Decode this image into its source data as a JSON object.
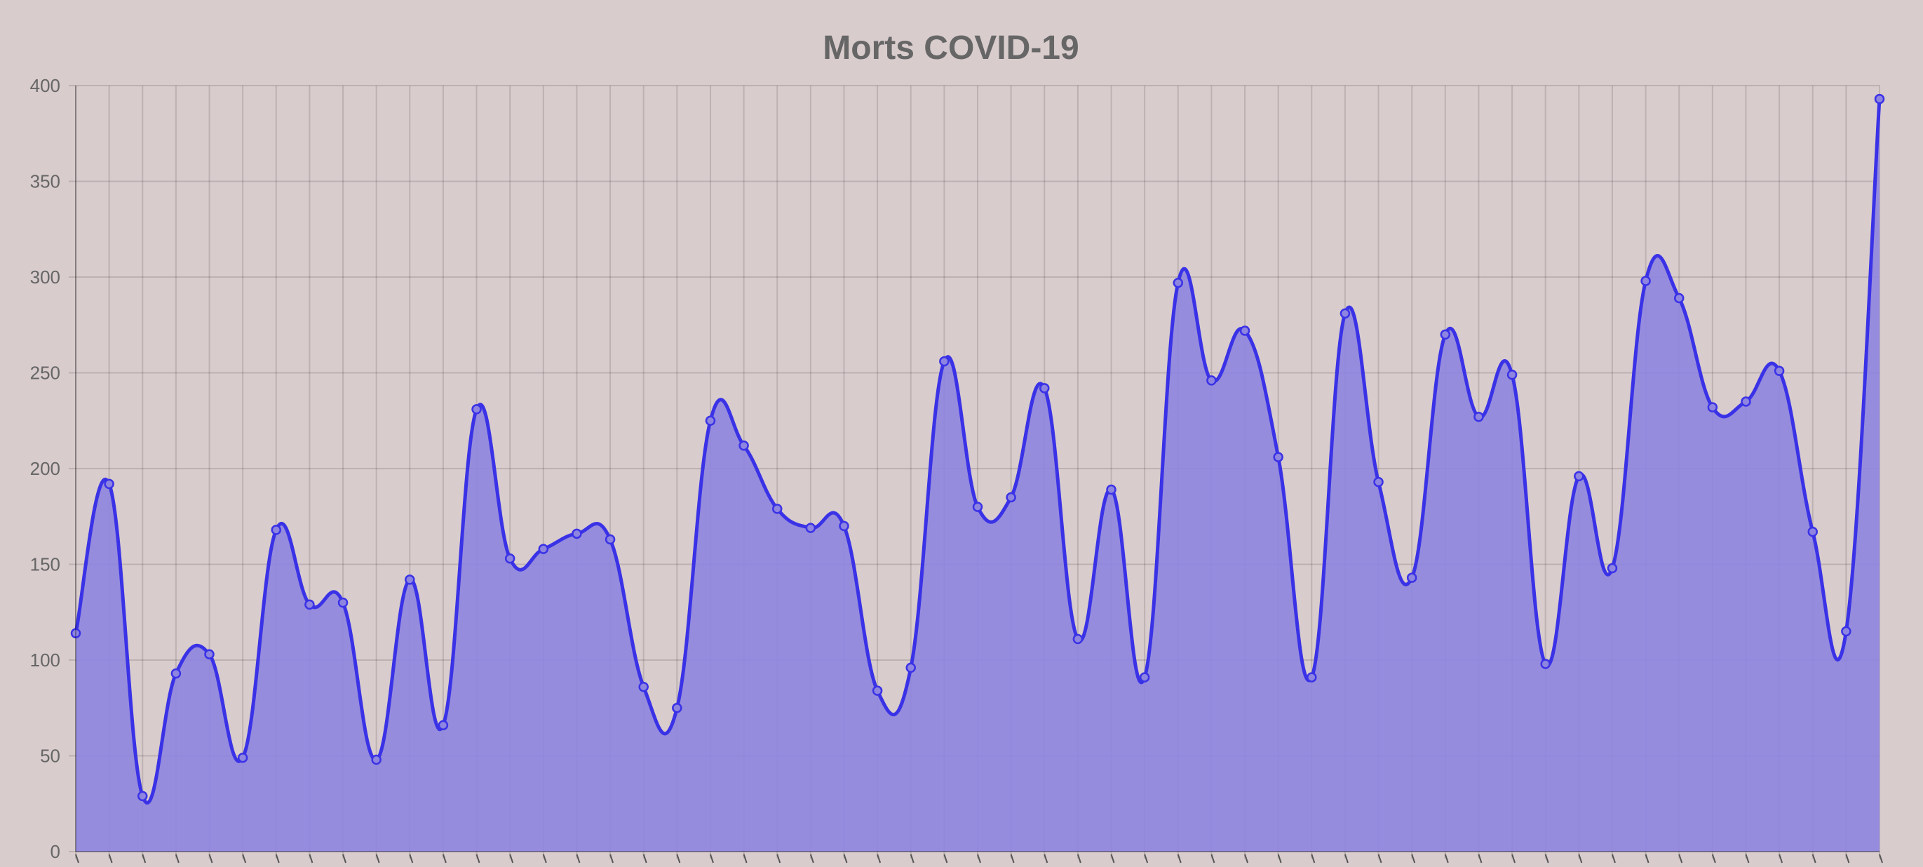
{
  "chart_data": {
    "type": "area",
    "title": "Morts COVID-19",
    "xlabel": "",
    "ylabel": "",
    "ylim": [
      0,
      400
    ],
    "y_ticks": [
      0,
      50,
      100,
      150,
      200,
      250,
      300,
      350,
      400
    ],
    "grid": true,
    "legend": "none",
    "series": [
      {
        "values": [
          114,
          192,
          29,
          93,
          103,
          49,
          168,
          129,
          130,
          48,
          142,
          66,
          231,
          153,
          158,
          166,
          163,
          86,
          75,
          225,
          212,
          179,
          169,
          170,
          84,
          96,
          256,
          180,
          185,
          242,
          111,
          189,
          91,
          297,
          246,
          272,
          206,
          91,
          281,
          193,
          143,
          270,
          227,
          249,
          98,
          196,
          148,
          298,
          289,
          232,
          235,
          251,
          167,
          115,
          393
        ],
        "line_color": "#3a32e6",
        "fill_color": "#8e85e0"
      }
    ]
  },
  "colors": {
    "background": "#d9cccd",
    "line": "#3a32e6",
    "fill": "#8e85e0",
    "text": "#666666"
  }
}
